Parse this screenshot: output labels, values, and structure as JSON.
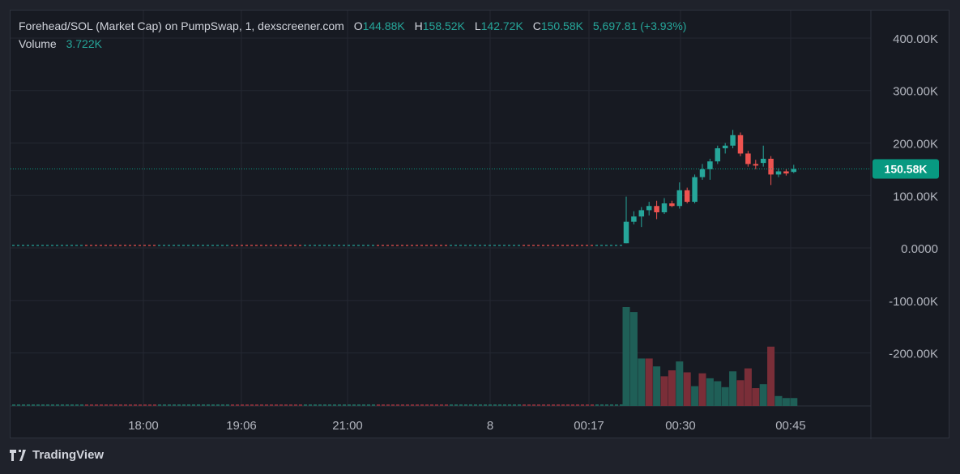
{
  "header": {
    "title": "Forehead/SOL (Market Cap) on PumpSwap, 1, dexscreener.com",
    "open_label": "O",
    "open_value": "144.88K",
    "high_label": "H",
    "high_value": "158.52K",
    "low_label": "L",
    "low_value": "142.72K",
    "close_label": "C",
    "close_value": "150.58K",
    "change": "5,697.81 (+3.93%)",
    "volume_label": "Volume",
    "volume_value": "3.722K"
  },
  "branding": {
    "name": "TradingView"
  },
  "colors": {
    "up": "#26a69a",
    "down": "#ef5350",
    "vol_up": "#1f5f57",
    "vol_down": "#7a2e38",
    "price_tag": "#089981"
  },
  "chart_data": {
    "type": "candlestick",
    "ylim": [
      -250000,
      420000
    ],
    "y_ticks": [
      "400.00K",
      "300.00K",
      "200.00K",
      "100.00K",
      "0.0000",
      "-100.00K",
      "-200.00K"
    ],
    "y_tick_values": [
      400000,
      300000,
      200000,
      100000,
      0,
      -100000,
      -200000
    ],
    "x_ticks": [
      "18:00",
      "19:06",
      "21:00",
      "8",
      "00:17",
      "00:30",
      "00:45"
    ],
    "last_price": 150580,
    "last_price_label": "150.58K",
    "candles": [
      {
        "o": 9000,
        "h": 98000,
        "l": 9000,
        "c": 50000
      },
      {
        "o": 50000,
        "h": 70000,
        "l": 45000,
        "c": 60000
      },
      {
        "o": 60000,
        "h": 78000,
        "l": 40000,
        "c": 72000
      },
      {
        "o": 72000,
        "h": 88000,
        "l": 62000,
        "c": 80000
      },
      {
        "o": 80000,
        "h": 90000,
        "l": 55000,
        "c": 68000
      },
      {
        "o": 68000,
        "h": 95000,
        "l": 65000,
        "c": 85000
      },
      {
        "o": 85000,
        "h": 90000,
        "l": 78000,
        "c": 80000
      },
      {
        "o": 80000,
        "h": 125000,
        "l": 75000,
        "c": 110000
      },
      {
        "o": 110000,
        "h": 115000,
        "l": 85000,
        "c": 88000
      },
      {
        "o": 88000,
        "h": 140000,
        "l": 85000,
        "c": 135000
      },
      {
        "o": 135000,
        "h": 160000,
        "l": 130000,
        "c": 150000
      },
      {
        "o": 150000,
        "h": 170000,
        "l": 130000,
        "c": 165000
      },
      {
        "o": 165000,
        "h": 195000,
        "l": 160000,
        "c": 190000
      },
      {
        "o": 190000,
        "h": 200000,
        "l": 180000,
        "c": 195000
      },
      {
        "o": 195000,
        "h": 225000,
        "l": 190000,
        "c": 215000
      },
      {
        "o": 215000,
        "h": 220000,
        "l": 175000,
        "c": 180000
      },
      {
        "o": 180000,
        "h": 185000,
        "l": 155000,
        "c": 160000
      },
      {
        "o": 160000,
        "h": 168000,
        "l": 150000,
        "c": 157000
      },
      {
        "o": 162000,
        "h": 195000,
        "l": 155000,
        "c": 170000
      },
      {
        "o": 170000,
        "h": 175000,
        "l": 120000,
        "c": 140000
      },
      {
        "o": 140000,
        "h": 152000,
        "l": 135000,
        "c": 146000
      },
      {
        "o": 146000,
        "h": 150000,
        "l": 138000,
        "c": 142000
      },
      {
        "o": 144880,
        "h": 158520,
        "l": 142720,
        "c": 150580
      }
    ],
    "volumes": [
      {
        "v": 100,
        "up": true
      },
      {
        "v": 95,
        "up": true
      },
      {
        "v": 48,
        "up": true
      },
      {
        "v": 48,
        "up": false
      },
      {
        "v": 40,
        "up": true
      },
      {
        "v": 30,
        "up": false
      },
      {
        "v": 36,
        "up": false
      },
      {
        "v": 45,
        "up": true
      },
      {
        "v": 34,
        "up": false
      },
      {
        "v": 20,
        "up": true
      },
      {
        "v": 33,
        "up": false
      },
      {
        "v": 28,
        "up": true
      },
      {
        "v": 25,
        "up": true
      },
      {
        "v": 19,
        "up": true
      },
      {
        "v": 35,
        "up": true
      },
      {
        "v": 26,
        "up": false
      },
      {
        "v": 38,
        "up": false
      },
      {
        "v": 18,
        "up": false
      },
      {
        "v": 22,
        "up": true
      },
      {
        "v": 60,
        "up": false
      },
      {
        "v": 10,
        "up": true
      },
      {
        "v": 8,
        "up": true
      },
      {
        "v": 8,
        "up": true
      }
    ]
  }
}
